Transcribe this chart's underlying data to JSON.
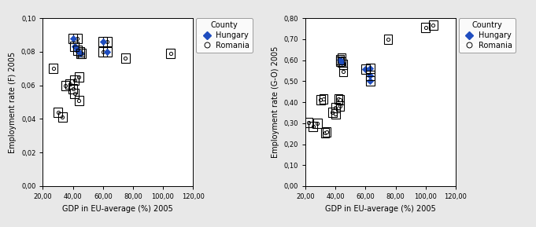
{
  "left_plot": {
    "xlabel": "GDP in EU-average (%) 2005",
    "ylabel": "Employment rate (F) 2005",
    "xlim": [
      20,
      120
    ],
    "ylim": [
      0.0,
      0.1
    ],
    "xticks": [
      20,
      40,
      60,
      80,
      100,
      120
    ],
    "yticks": [
      0.0,
      0.02,
      0.04,
      0.06,
      0.08,
      0.1
    ],
    "xtick_labels": [
      "20,00",
      "40,00",
      "60,00",
      "80,00",
      "100,00",
      "120,00"
    ],
    "ytick_labels": [
      "0,00",
      "0,02",
      "0,04",
      "0,06",
      "0,08",
      "0,10"
    ],
    "legend_title": "County",
    "romania_points": [
      [
        27,
        0.07
      ],
      [
        30,
        0.044
      ],
      [
        33,
        0.041
      ],
      [
        35,
        0.06
      ],
      [
        38,
        0.061
      ],
      [
        40,
        0.058
      ],
      [
        41,
        0.055
      ],
      [
        41,
        0.063
      ],
      [
        43,
        0.088
      ],
      [
        44,
        0.051
      ],
      [
        44,
        0.065
      ],
      [
        45,
        0.08
      ],
      [
        46,
        0.079
      ],
      [
        60,
        0.08
      ],
      [
        63,
        0.086
      ],
      [
        75,
        0.076
      ],
      [
        105,
        0.079
      ]
    ],
    "hungary_points": [
      [
        40,
        0.088
      ],
      [
        41,
        0.083
      ],
      [
        43,
        0.081
      ],
      [
        45,
        0.079
      ],
      [
        60,
        0.086
      ],
      [
        63,
        0.08
      ]
    ]
  },
  "right_plot": {
    "xlabel": "GDP in EU-average (%) 2005",
    "ylabel": "Employment rate (G-O) 2005",
    "xlim": [
      20,
      120
    ],
    "ylim": [
      0.0,
      0.8
    ],
    "xticks": [
      20,
      40,
      60,
      80,
      100,
      120
    ],
    "yticks": [
      0.0,
      0.1,
      0.2,
      0.3,
      0.4,
      0.5,
      0.6,
      0.7,
      0.8
    ],
    "xtick_labels": [
      "20,00",
      "40,00",
      "60,00",
      "80,00",
      "100,00",
      "120,00"
    ],
    "ytick_labels": [
      "0,00",
      "0,10",
      "0,20",
      "0,30",
      "0,40",
      "0,50",
      "0,60",
      "0,70",
      "0,80"
    ],
    "legend_title": "Country",
    "romania_points": [
      [
        22,
        0.302
      ],
      [
        25,
        0.285
      ],
      [
        28,
        0.3
      ],
      [
        30,
        0.41
      ],
      [
        32,
        0.415
      ],
      [
        33,
        0.253
      ],
      [
        34,
        0.258
      ],
      [
        38,
        0.35
      ],
      [
        40,
        0.345
      ],
      [
        40,
        0.375
      ],
      [
        42,
        0.414
      ],
      [
        43,
        0.38
      ],
      [
        43,
        0.41
      ],
      [
        43,
        0.595
      ],
      [
        44,
        0.61
      ],
      [
        45,
        0.545
      ],
      [
        45,
        0.58
      ],
      [
        75,
        0.7
      ],
      [
        100,
        0.755
      ],
      [
        105,
        0.767
      ]
    ],
    "hungary_points": [
      [
        43,
        0.603
      ],
      [
        44,
        0.592
      ],
      [
        60,
        0.558
      ],
      [
        63,
        0.562
      ],
      [
        63,
        0.527
      ],
      [
        63,
        0.502
      ]
    ]
  },
  "hungary_color": "#1f4dbf",
  "romania_facecolor": "#ffffff",
  "romania_edgecolor": "#000000",
  "box_color": "#000000",
  "fig_facecolor": "#e8e8e8",
  "plot_bg_color": "#ffffff",
  "fontsize_ticks": 6,
  "fontsize_labels": 7,
  "fontsize_legend": 7
}
